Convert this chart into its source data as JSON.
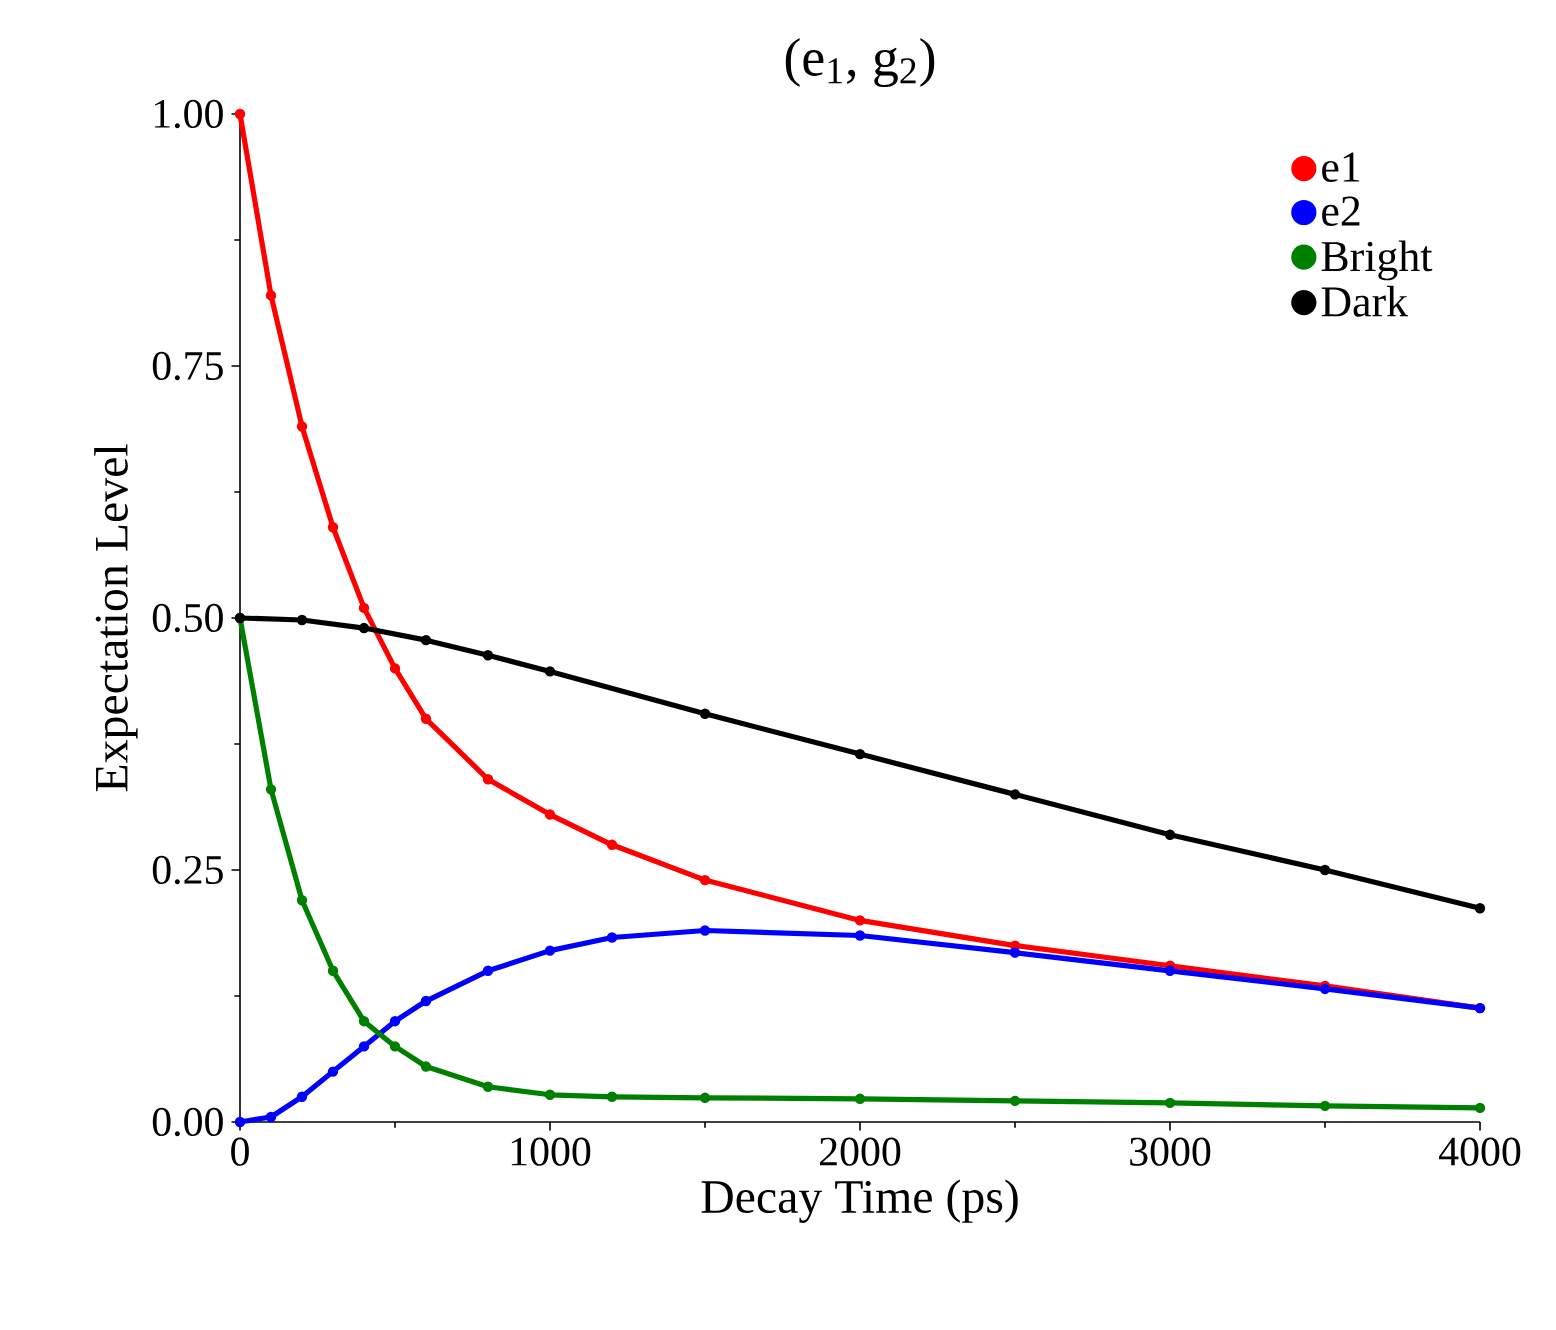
{
  "chart_data": {
    "type": "line",
    "title": "(e$_{1}$, g$_{2}$)",
    "xlabel": "Decay Time (ps)",
    "ylabel": "Expectation Level",
    "xlim": [
      0,
      4000
    ],
    "ylim": [
      0,
      1
    ],
    "xticks": [
      0,
      1000,
      2000,
      3000,
      4000
    ],
    "yticks": [
      {
        "value": 0,
        "label": "0.00"
      },
      {
        "value": 0.25,
        "label": "0.25"
      },
      {
        "value": 0.5,
        "label": "0.50"
      },
      {
        "value": 0.75,
        "label": "0.75"
      },
      {
        "value": 1,
        "label": "1.00"
      }
    ],
    "legend": "top right",
    "marker": "circle",
    "grid": false,
    "series": [
      {
        "name": "e1",
        "color": "#ff0000",
        "x": [
          0,
          100,
          200,
          300,
          400,
          500,
          600,
          800,
          1000,
          1200,
          1500,
          2000,
          2500,
          3000,
          3500,
          4000
        ],
        "values": [
          1.0,
          0.82,
          0.69,
          0.59,
          0.51,
          0.45,
          0.4,
          0.34,
          0.305,
          0.275,
          0.24,
          0.2,
          0.175,
          0.155,
          0.135,
          0.113
        ]
      },
      {
        "name": "e2",
        "color": "#0000ff",
        "x": [
          0,
          100,
          200,
          300,
          400,
          500,
          600,
          800,
          1000,
          1200,
          1500,
          2000,
          2500,
          3000,
          3500,
          4000
        ],
        "values": [
          0,
          0.005,
          0.025,
          0.05,
          0.075,
          0.1,
          0.12,
          0.15,
          0.17,
          0.183,
          0.19,
          0.185,
          0.168,
          0.15,
          0.132,
          0.113
        ]
      },
      {
        "name": "Bright",
        "color": "#008000",
        "x": [
          0,
          100,
          200,
          300,
          400,
          500,
          600,
          800,
          1000,
          1200,
          1500,
          2000,
          2500,
          3000,
          3500,
          4000
        ],
        "values": [
          0.5,
          0.33,
          0.22,
          0.15,
          0.1,
          0.075,
          0.055,
          0.035,
          0.027,
          0.025,
          0.024,
          0.023,
          0.021,
          0.019,
          0.016,
          0.014
        ]
      },
      {
        "name": "Dark",
        "color": "#000000",
        "x": [
          0,
          200,
          400,
          600,
          800,
          1000,
          1500,
          2000,
          2500,
          3000,
          3500,
          4000
        ],
        "values": [
          0.5,
          0.498,
          0.49,
          0.478,
          0.463,
          0.447,
          0.405,
          0.365,
          0.325,
          0.285,
          0.25,
          0.212
        ]
      }
    ]
  }
}
